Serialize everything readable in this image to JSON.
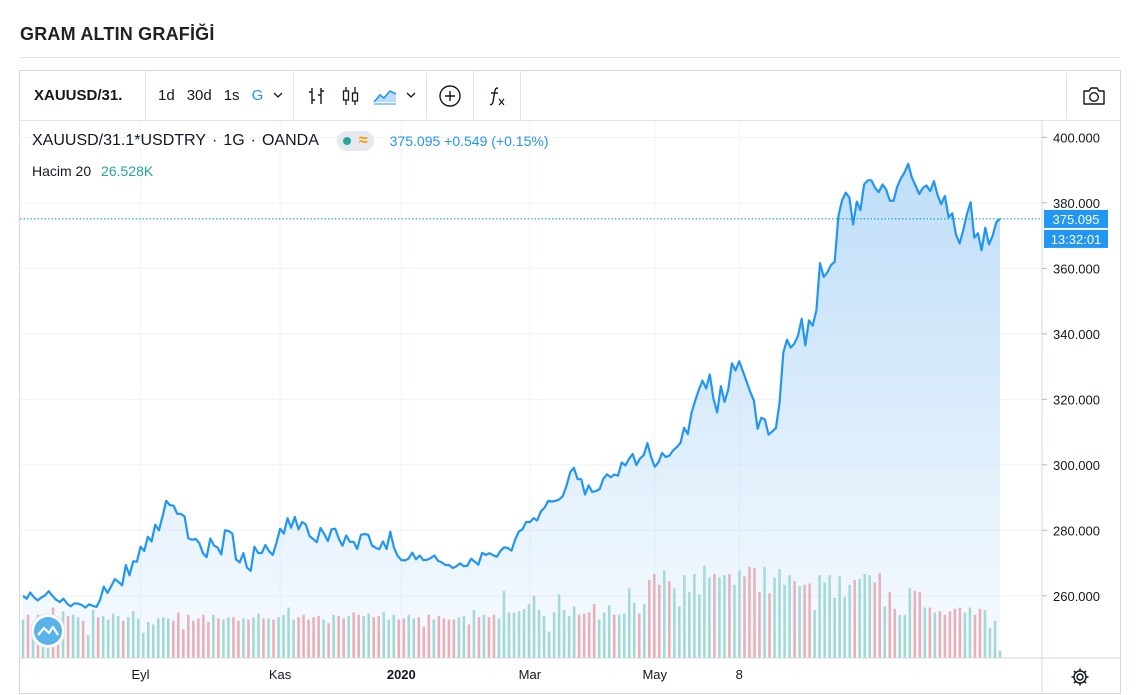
{
  "page": {
    "title": "GRAM ALTIN GRAFİĞİ"
  },
  "toolbar": {
    "symbol": "XAUUSD/31.",
    "ranges": [
      "1d",
      "30d",
      "1s",
      "G"
    ],
    "active_range": "G",
    "icons": [
      "bar-chart-icon",
      "candlestick-icon",
      "area-chart-icon",
      "chevron-down-icon",
      "add-indicator-icon",
      "function-icon",
      "camera-icon"
    ]
  },
  "legend": {
    "symbol": "XAUUSD/31.1*USDTRY",
    "interval": "1G",
    "exchange": "OANDA",
    "price": "375.095",
    "change": "+0.549",
    "change_pct": "(+0.15%)",
    "volume_label": "Hacim 20",
    "volume_value": "26.528K"
  },
  "price_axis": {
    "last_price_label": "375.095",
    "countdown_label": "13:32:01"
  },
  "colors": {
    "line": "#2196f3",
    "area_top": "#bcdcf8",
    "vol_up": "#9fd8cd",
    "vol_down": "#f2a7ab",
    "grid": "#f0f3fa",
    "axis_text": "#131722"
  },
  "chart_data": {
    "type": "area",
    "title": "",
    "xlabel": "",
    "ylabel": "",
    "ylim": [
      241,
      405
    ],
    "yticks": [
      260,
      280,
      300,
      320,
      340,
      360,
      380,
      400
    ],
    "ytick_labels": [
      "260.000",
      "280.000",
      "300.000",
      "320.000",
      "340.000",
      "360.000",
      "380.000",
      "400.000"
    ],
    "xtick_labels": [
      {
        "label": "Eyl",
        "index": 32
      },
      {
        "label": "Kas",
        "index": 70
      },
      {
        "label": "2020",
        "index": 103,
        "bold": true
      },
      {
        "label": "Mar",
        "index": 138
      },
      {
        "label": "May",
        "index": 172
      },
      {
        "label": "8",
        "index": 195
      }
    ],
    "current_value": 375.095,
    "series": [
      {
        "kind": "price",
        "values": [
          260.0,
          259.1,
          261.0,
          259.5,
          258.6,
          259.5,
          260.1,
          261.4,
          260.0,
          258.8,
          258.1,
          259.1,
          257.6,
          256.8,
          257.7,
          257.6,
          257.2,
          256.4,
          257.4,
          256.9,
          256.6,
          258.8,
          262.8,
          260.9,
          262.9,
          265.1,
          264.2,
          263.2,
          269.4,
          266.3,
          270.5,
          270.4,
          275.0,
          273.7,
          278.0,
          276.6,
          281.7,
          280.0,
          284.3,
          289.0,
          287.7,
          287.5,
          285.0,
          285.0,
          284.2,
          277.6,
          277.1,
          277.4,
          276.1,
          273.0,
          271.8,
          277.5,
          275.4,
          274.7,
          272.6,
          280.0,
          279.8,
          279.0,
          271.1,
          270.2,
          273.0,
          268.6,
          267.6,
          275.0,
          273.1,
          273.0,
          275.5,
          273.6,
          272.5,
          276.1,
          280.5,
          279.0,
          283.7,
          280.8,
          284.1,
          280.3,
          282.5,
          281.8,
          278.3,
          277.3,
          276.4,
          280.7,
          278.9,
          276.7,
          280.3,
          280.5,
          277.4,
          275.3,
          278.4,
          276.5,
          276.5,
          274.3,
          278.6,
          278.9,
          278.6,
          275.4,
          274.7,
          274.2,
          276.6,
          274.3,
          279.6,
          274.7,
          272.2,
          270.9,
          270.8,
          271.4,
          273.2,
          271.1,
          272.3,
          270.9,
          271.0,
          271.5,
          272.3,
          270.7,
          270.2,
          269.4,
          269.4,
          268.5,
          269.0,
          269.9,
          269.0,
          269.2,
          271.3,
          270.4,
          269.5,
          273.1,
          272.5,
          273.0,
          272.4,
          271.9,
          273.7,
          274.8,
          274.6,
          273.8,
          277.2,
          279.6,
          280.3,
          282.6,
          282.5,
          283.7,
          283.0,
          285.8,
          286.9,
          289.0,
          288.8,
          289.0,
          289.4,
          290.5,
          293.7,
          297.8,
          299.1,
          295.6,
          295.6,
          290.9,
          293.7,
          291.7,
          292.0,
          292.6,
          295.7,
          297.1,
          296.2,
          297.0,
          296.7,
          300.7,
          299.8,
          301.8,
          303.3,
          299.9,
          302.0,
          302.9,
          306.6,
          302.4,
          299.4,
          300.7,
          303.6,
          302.4,
          302.8,
          304.4,
          305.4,
          306.7,
          311.3,
          309.4,
          315.8,
          319.5,
          322.9,
          325.7,
          323.3,
          327.6,
          320.1,
          316.0,
          324.0,
          319.2,
          322.9,
          331.0,
          328.8,
          331.6,
          328.6,
          325.4,
          322.3,
          319.6,
          311.0,
          314.4,
          313.8,
          309.2,
          310.2,
          311.3,
          319.1,
          334.2,
          338.2,
          335.8,
          337.0,
          339.4,
          344.6,
          336.5,
          344.1,
          342.5,
          347.2,
          361.6,
          357.4,
          358.8,
          361.0,
          362.0,
          376.0,
          380.8,
          383.1,
          381.6,
          373.4,
          380.4,
          377.8,
          385.6,
          386.9,
          386.9,
          384.6,
          383.3,
          385.6,
          384.1,
          380.7,
          380.6,
          384.9,
          387.4,
          389.3,
          391.9,
          387.8,
          385.3,
          382.7,
          384.6,
          385.3,
          383.6,
          386.6,
          382.4,
          379.6,
          382.1,
          375.6,
          376.8,
          370.4,
          367.6,
          371.7,
          376.5,
          380.2,
          369.4,
          370.7,
          365.5,
          372.4,
          367.3,
          370.0,
          374.1,
          375.1
        ]
      },
      {
        "kind": "volume",
        "values": [
          32,
          36,
          26,
          36,
          36,
          34,
          42,
          34,
          39,
          35,
          36,
          34,
          31,
          19,
          40,
          34,
          35,
          32,
          37,
          35,
          31,
          34,
          39,
          33,
          21,
          30,
          28,
          33,
          34,
          33,
          31,
          38,
          24,
          36,
          31,
          33,
          36,
          30,
          36,
          33,
          32,
          34,
          34,
          31,
          33,
          32,
          34,
          37,
          33,
          33,
          32,
          34,
          36,
          42,
          32,
          34,
          36,
          32,
          34,
          35,
          32,
          29,
          36,
          35,
          33,
          35,
          38,
          36,
          35,
          37,
          34,
          35,
          38,
          32,
          36,
          32,
          33,
          36,
          33,
          34,
          26,
          36,
          32,
          35,
          33,
          32,
          32,
          34,
          35,
          28,
          40,
          34,
          36,
          34,
          36,
          33,
          56,
          38,
          38,
          39,
          41,
          45,
          52,
          40,
          35,
          22,
          38,
          53,
          40,
          35,
          43,
          36,
          37,
          38,
          45,
          32,
          38,
          44,
          36,
          36,
          37,
          58,
          46,
          37,
          45,
          65,
          70,
          61,
          73,
          64,
          58,
          43,
          69,
          55,
          70,
          53,
          77,
          67,
          70,
          67,
          69,
          70,
          61,
          73,
          68,
          76,
          75,
          55,
          76,
          54,
          67,
          74,
          61,
          69,
          64,
          60,
          61,
          62,
          40,
          69,
          63,
          69,
          50,
          68,
          51,
          61,
          65,
          66,
          70,
          69,
          63,
          71,
          43,
          55,
          41,
          36,
          36,
          58,
          56,
          55,
          42,
          42,
          38,
          39,
          36,
          39,
          41,
          42,
          38,
          42,
          36,
          41,
          40,
          25,
          31,
          6
        ]
      }
    ]
  }
}
